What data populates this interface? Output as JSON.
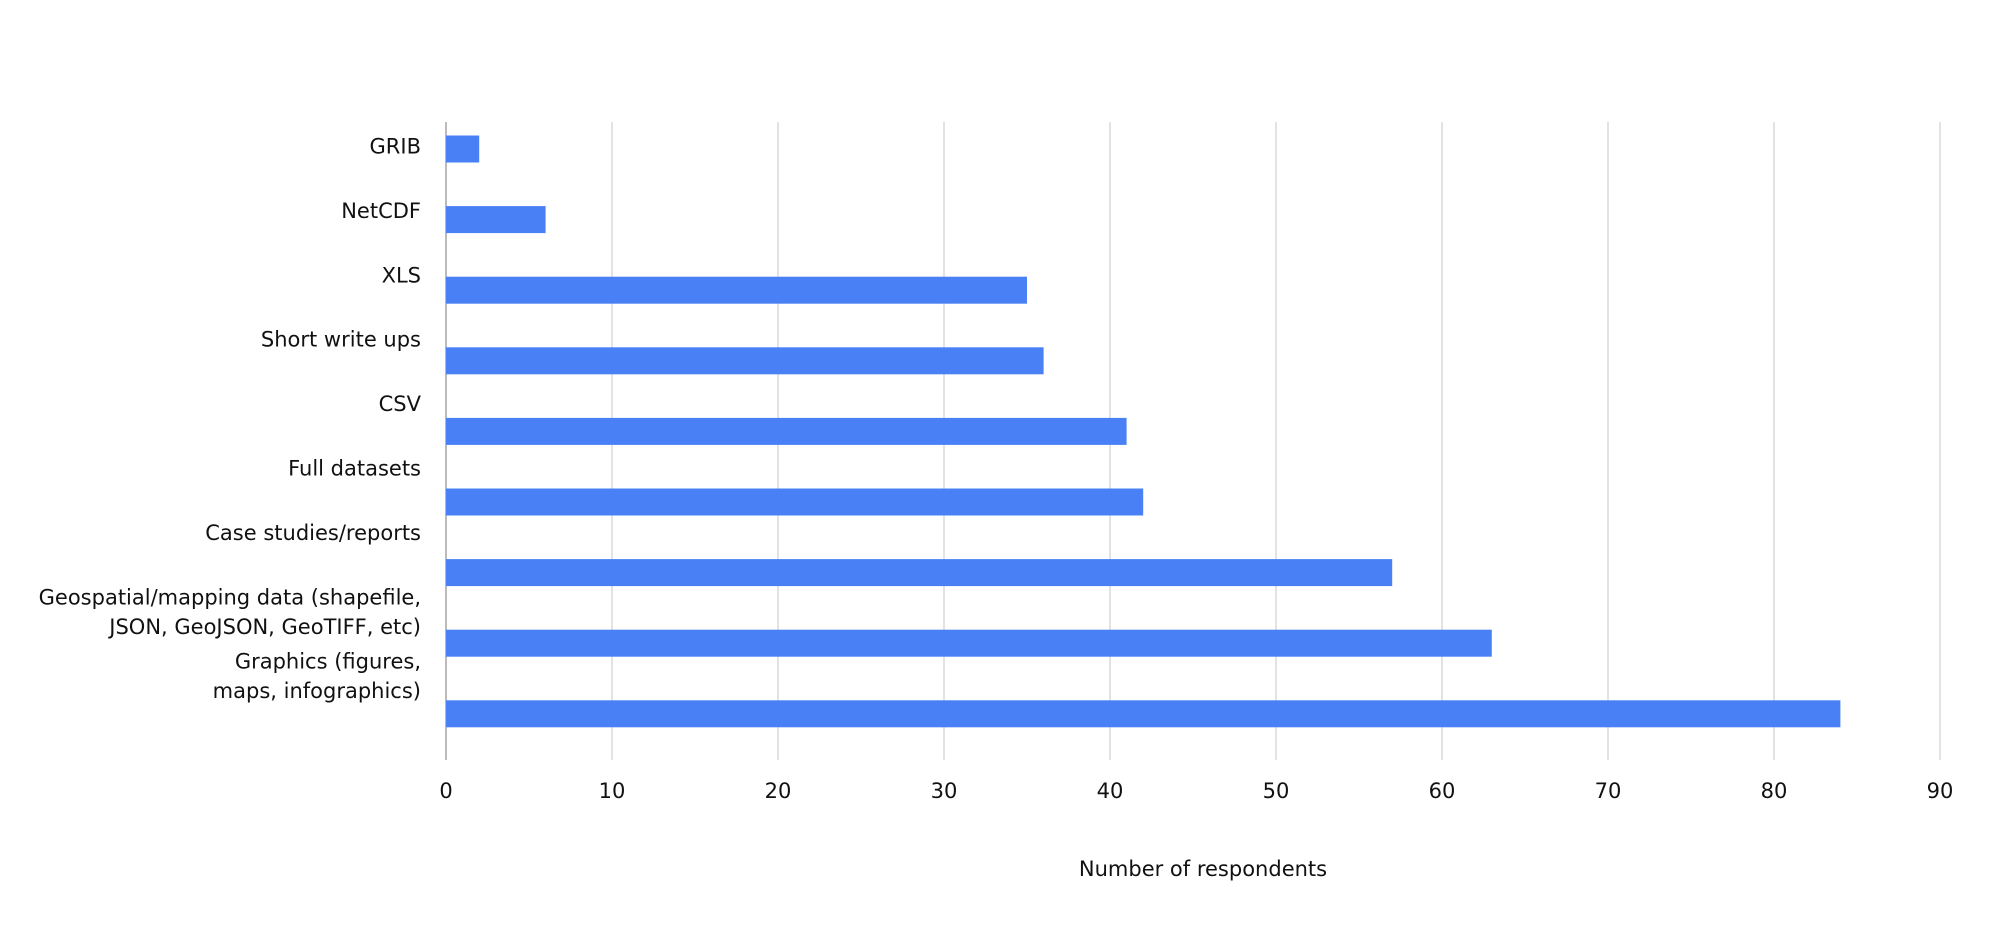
{
  "chart_data": {
    "type": "bar",
    "orientation": "horizontal",
    "categories": [
      "GRIB",
      "NetCDF",
      "XLS",
      "Short write ups",
      "CSV",
      "Full datasets",
      "Case studies/reports",
      "Geospatial/mapping data (shapefile,\nJSON, GeoJSON, GeoTIFF, etc)",
      "Graphics (figures,\nmaps, infographics)"
    ],
    "values": [
      2,
      6,
      35,
      36,
      41,
      42,
      57,
      63,
      84
    ],
    "color": "#4a80f5",
    "xlabel": "Number of respondents",
    "xlim": [
      0,
      90
    ],
    "xticks": [
      0,
      10,
      20,
      30,
      40,
      50,
      60,
      70,
      80,
      90
    ],
    "grid": true
  }
}
